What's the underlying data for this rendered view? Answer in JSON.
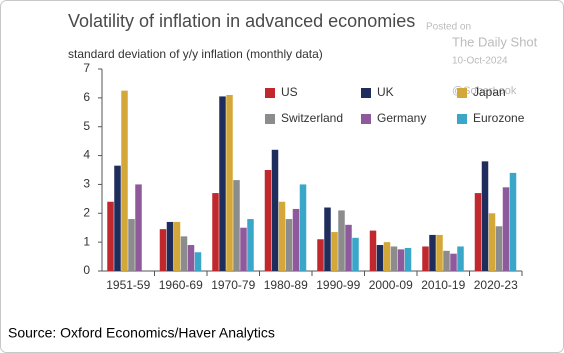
{
  "chart_data": {
    "type": "bar",
    "title": "Volatility of inflation in advanced economies",
    "subtitle": "standard deviation of y/y inflation (monthly data)",
    "categories": [
      "1951-59",
      "1960-69",
      "1970-79",
      "1980-89",
      "1990-99",
      "2000-09",
      "2010-19",
      "2020-23"
    ],
    "series": [
      {
        "name": "US",
        "color": "#c0282d",
        "values": [
          2.4,
          1.45,
          2.7,
          3.5,
          1.1,
          1.4,
          0.85,
          2.7
        ]
      },
      {
        "name": "UK",
        "color": "#1f2d5c",
        "values": [
          3.65,
          1.7,
          6.05,
          4.2,
          2.2,
          0.9,
          1.25,
          3.8
        ]
      },
      {
        "name": "Japan",
        "color": "#d4a838",
        "values": [
          6.25,
          1.7,
          6.1,
          2.4,
          1.35,
          1.0,
          1.25,
          2.0
        ]
      },
      {
        "name": "Switzerland",
        "color": "#8c8c8c",
        "values": [
          1.8,
          1.2,
          3.15,
          1.8,
          2.1,
          0.85,
          0.7,
          1.55
        ]
      },
      {
        "name": "Germany",
        "color": "#8e5a9b",
        "values": [
          3.0,
          0.9,
          1.5,
          2.15,
          1.6,
          0.75,
          0.6,
          2.9
        ]
      },
      {
        "name": "Eurozone",
        "color": "#3aa6c8",
        "values": [
          null,
          0.65,
          1.8,
          3.0,
          1.15,
          0.8,
          0.85,
          3.4
        ]
      }
    ],
    "ylim": [
      0,
      7
    ],
    "yticks": [
      0,
      1,
      2,
      3,
      4,
      5,
      6,
      7
    ]
  },
  "watermark": {
    "line1": "Posted on",
    "line2": "The Daily Shot",
    "line3": "10-Oct-2024",
    "line4": "@SoberLook"
  },
  "source": "Source: Oxford Economics/Haver Analytics"
}
